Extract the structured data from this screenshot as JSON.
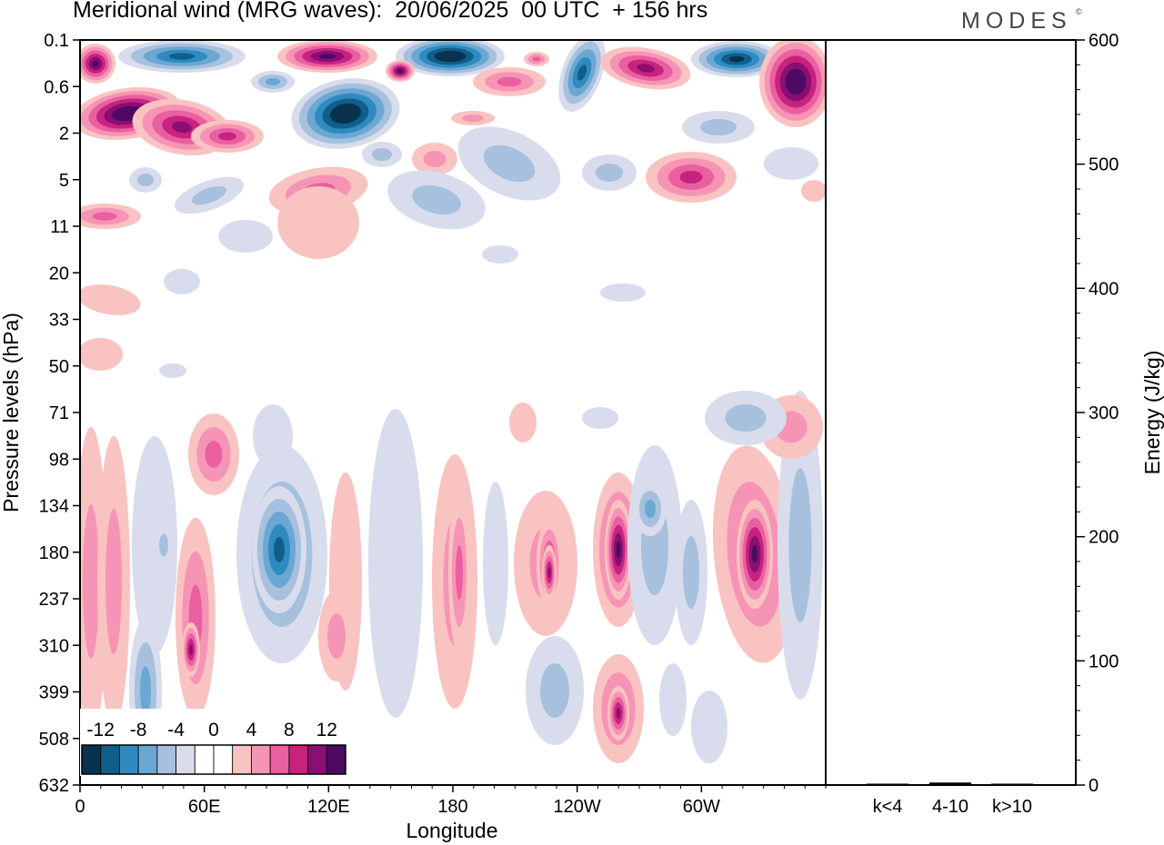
{
  "header": {
    "title": "Meridional wind (MRG waves):  20/06/2025  00 UTC  + 156 hrs",
    "brand": "MODES",
    "brand_mark": "©"
  },
  "chart_data": [
    {
      "type": "heatmap",
      "title": "Meridional wind (MRG waves):  20/06/2025  00 UTC  + 156 hrs",
      "xlabel": "Longitude",
      "ylabel": "Pressure levels (hPa)",
      "x_ticks": [
        "0",
        "60E",
        "120E",
        "180",
        "120W",
        "60W"
      ],
      "x_range_deg": [
        0,
        360
      ],
      "y_ticks": [
        "0.1",
        "0.6",
        "2",
        "5",
        "11",
        "20",
        "33",
        "50",
        "71",
        "98",
        "134",
        "180",
        "237",
        "310",
        "399",
        "508",
        "632"
      ],
      "y_order": "top-to-bottom",
      "colorbar": {
        "tick_labels": [
          "-12",
          "-8",
          "-4",
          "0",
          "4",
          "8",
          "12"
        ],
        "colors": [
          "#08324f",
          "#0f5f8a",
          "#2f8ac0",
          "#6aa7d2",
          "#a6c0dd",
          "#d9dcec",
          "#ffffff",
          "#ffffff",
          "#f9c3c1",
          "#f694b5",
          "#e95fa0",
          "#c6237f",
          "#8a0e73",
          "#4d0a63"
        ],
        "placement": "bottom-left inside plot"
      },
      "features": [
        {
          "lon": 30,
          "plev": "0.6",
          "value": 14
        },
        {
          "lon": 120,
          "plev": "0.6",
          "value": -14
        },
        {
          "lon": 200,
          "plev": "0.1",
          "value": -14
        },
        {
          "lon": 90,
          "plev": "180",
          "value": -10
        },
        {
          "lon": 260,
          "plev": "180",
          "value": 10
        },
        {
          "lon": 325,
          "plev": "180",
          "value": 10
        },
        {
          "lon": 235,
          "plev": "180",
          "value": 6
        },
        {
          "lon": 55,
          "plev": "310",
          "value": 6
        },
        {
          "lon": 260,
          "plev": "508",
          "value": 6
        }
      ]
    },
    {
      "type": "bar",
      "ylabel": "Energy (J/kg)",
      "categories": [
        "k<4",
        "4-10",
        "k>10"
      ],
      "values": [
        0,
        2,
        0
      ],
      "ylim": [
        0,
        600
      ],
      "y_ticks": [
        "0",
        "100",
        "200",
        "300",
        "400",
        "500",
        "600"
      ]
    }
  ]
}
